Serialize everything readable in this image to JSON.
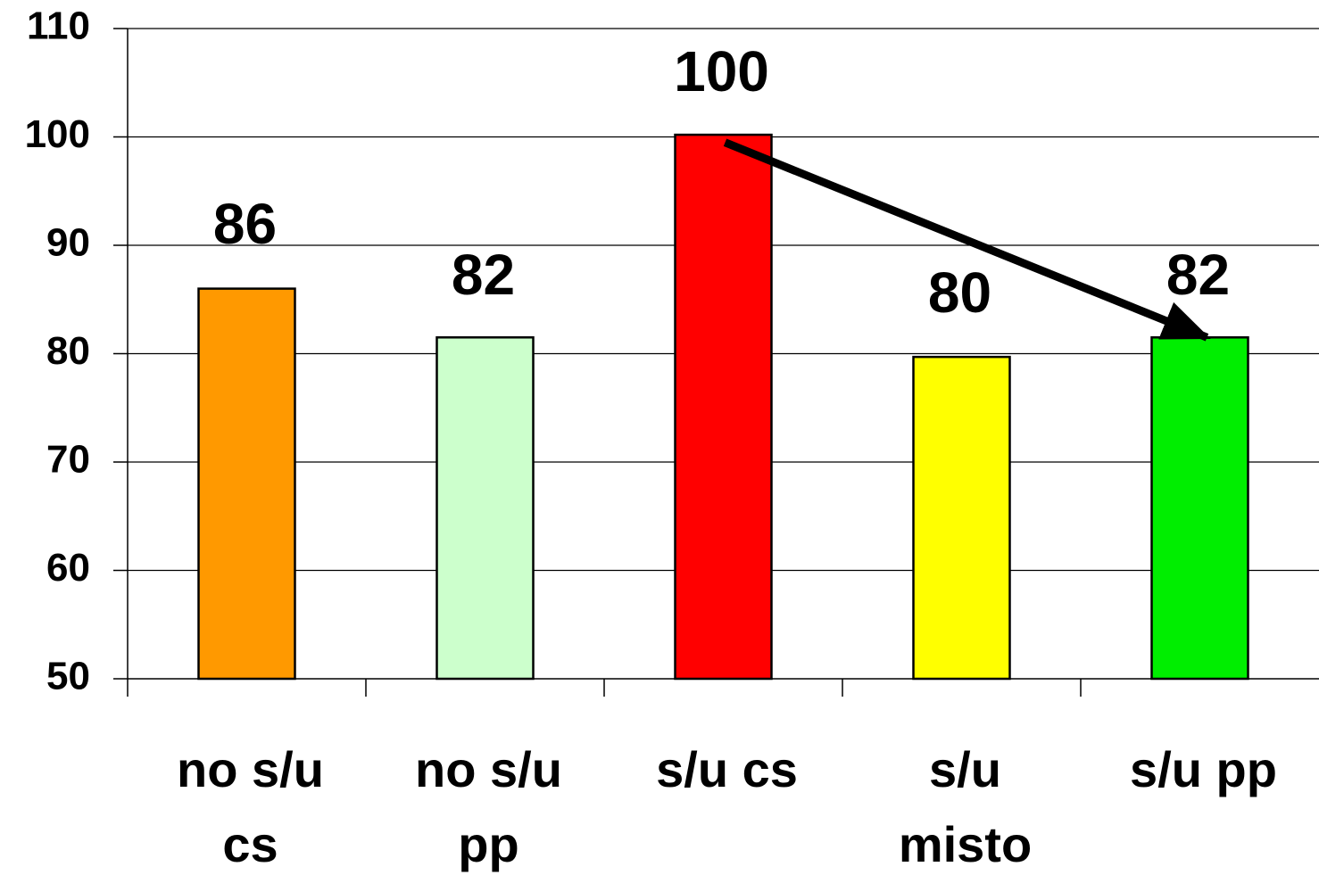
{
  "chart_data": {
    "type": "bar",
    "title": "",
    "xlabel": "",
    "ylabel": "",
    "categories": [
      [
        "no s/u",
        "cs"
      ],
      [
        "no s/u",
        "pp"
      ],
      [
        "s/u cs"
      ],
      [
        "s/u",
        "misto"
      ],
      [
        "s/u pp"
      ]
    ],
    "values": [
      86,
      81.5,
      100.2,
      79.7,
      81.5
    ],
    "data_labels": [
      "86",
      "82",
      "100",
      "80",
      "82"
    ],
    "colors": [
      "#FF9900",
      "#CCFFCC",
      "#FF0000",
      "#FFFF00",
      "#00EE00"
    ],
    "ylim": [
      50,
      110
    ],
    "yticks": [
      50,
      60,
      70,
      80,
      90,
      100,
      110
    ],
    "ytick_labels": [
      "50",
      "60",
      "70",
      "80",
      "90",
      "100",
      "110"
    ],
    "grid": true,
    "legend": "none",
    "annotation": {
      "type": "arrow",
      "from": {
        "category_index": 2,
        "value": 98.5
      },
      "to": {
        "category_index": 4,
        "value": 81.5
      }
    }
  }
}
